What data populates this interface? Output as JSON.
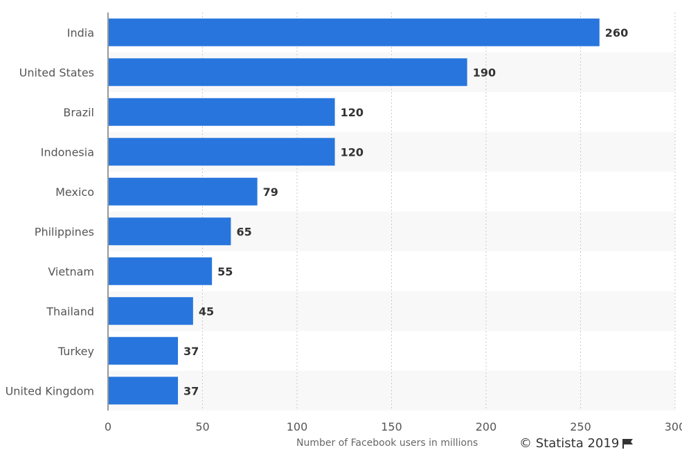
{
  "chart_data": {
    "type": "bar",
    "orientation": "horizontal",
    "categories": [
      "India",
      "United States",
      "Brazil",
      "Indonesia",
      "Mexico",
      "Philippines",
      "Vietnam",
      "Thailand",
      "Turkey",
      "United Kingdom"
    ],
    "values": [
      260,
      190,
      120,
      120,
      79,
      65,
      55,
      45,
      37,
      37
    ],
    "value_labels": [
      "260",
      "190",
      "120",
      "120",
      "79",
      "65",
      "55",
      "45",
      "37",
      "37"
    ],
    "xlabel": "Number of Facebook users in millions",
    "ylabel": "",
    "xlim": [
      0,
      300
    ],
    "x_ticks": [
      0,
      50,
      100,
      150,
      200,
      250,
      300
    ],
    "x_tick_labels": [
      "0",
      "50",
      "100",
      "150",
      "200",
      "250",
      "300"
    ],
    "grid": true,
    "bar_color": "#2876dd",
    "alternate_row_color": "#f8f8f8"
  },
  "credit": {
    "text": "© Statista 2019",
    "icon": "flag-icon"
  }
}
